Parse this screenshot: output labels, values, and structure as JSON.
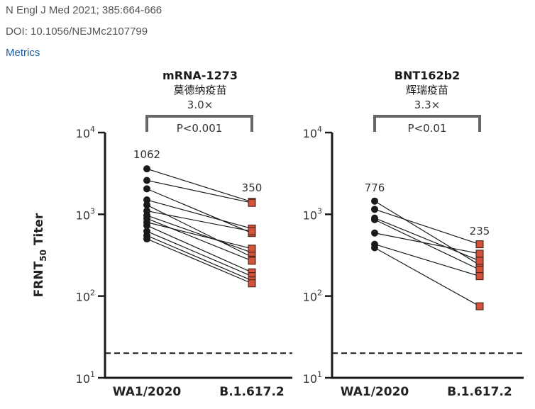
{
  "citation": {
    "journal": "N Engl J Med 2021; 385:664-666",
    "doi": "DOI: 10.1056/NEJMc2107799",
    "metrics_link": "Metrics"
  },
  "colors": {
    "wa1_marker": "#1a1a1a",
    "variant_marker": "#d0523a",
    "bracket": "#666666",
    "link": "#1a5a9c"
  },
  "chart_data": [
    {
      "type": "scatter",
      "subtype": "paired-dot",
      "title": "mRNA-1273",
      "subtitle": "莫德纳疫苗",
      "fold_change": "3.0×",
      "p_value": "P<0.001",
      "ylabel": "FRNT50 Titer",
      "ylabel_main": "FRNT",
      "ylabel_sub": "50",
      "ylabel_tail": " Titer",
      "yscale": "log",
      "ylim": [
        10,
        10000
      ],
      "yticks": [
        {
          "base": "10",
          "exp": "4"
        },
        {
          "base": "10",
          "exp": "3"
        },
        {
          "base": "10",
          "exp": "2"
        },
        {
          "base": "10",
          "exp": "1"
        }
      ],
      "ytick_values": [
        10000,
        1000,
        100,
        10
      ],
      "detection_limit": 20,
      "categories": [
        "WA1/2020",
        "B.1.617.2"
      ],
      "geometric_means": [
        "1062",
        "350"
      ],
      "pairs": [
        [
          3600,
          1420
        ],
        [
          2600,
          1380
        ],
        [
          2050,
          590
        ],
        [
          1500,
          670
        ],
        [
          1300,
          300
        ],
        [
          1100,
          620
        ],
        [
          970,
          340
        ],
        [
          890,
          270
        ],
        [
          800,
          380
        ],
        [
          730,
          195
        ],
        [
          620,
          175
        ],
        [
          550,
          155
        ],
        [
          500,
          143
        ]
      ]
    },
    {
      "type": "scatter",
      "subtype": "paired-dot",
      "title": "BNT162b2",
      "subtitle": "辉瑞疫苗",
      "fold_change": "3.3×",
      "p_value": "P<0.01",
      "yscale": "log",
      "ylim": [
        10,
        10000
      ],
      "yticks": [
        {
          "base": "10",
          "exp": "4"
        },
        {
          "base": "10",
          "exp": "3"
        },
        {
          "base": "10",
          "exp": "2"
        },
        {
          "base": "10",
          "exp": "1"
        }
      ],
      "ytick_values": [
        10000,
        1000,
        100,
        10
      ],
      "detection_limit": 20,
      "categories": [
        "WA1/2020",
        "B.1.617.2"
      ],
      "geometric_means": [
        "776",
        "235"
      ],
      "pairs": [
        [
          1450,
          240
        ],
        [
          1150,
          430
        ],
        [
          900,
          270
        ],
        [
          860,
          210
        ],
        [
          590,
          330
        ],
        [
          430,
          175
        ],
        [
          390,
          75
        ]
      ]
    }
  ]
}
